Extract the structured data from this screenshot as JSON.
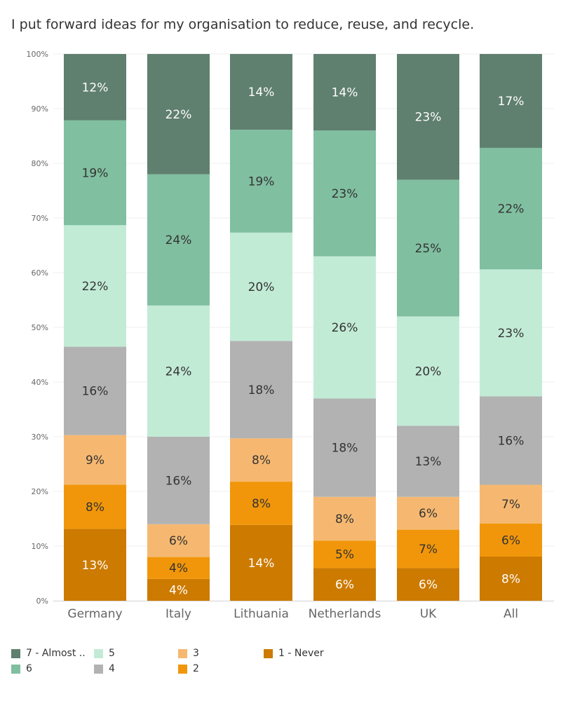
{
  "chart_data": {
    "type": "bar",
    "stacked": true,
    "normalized": true,
    "title": "I put forward ideas for my organisation to reduce, reuse, and recycle.",
    "categories": [
      "Germany",
      "Italy",
      "Lithuania",
      "Netherlands",
      "UK",
      "All"
    ],
    "y_ticks": [
      "0%",
      "10%",
      "20%",
      "30%",
      "40%",
      "50%",
      "60%",
      "70%",
      "80%",
      "90%",
      "100%"
    ],
    "ylim": [
      0,
      100
    ],
    "series": [
      {
        "name": "1 - Never",
        "color": "#cc7a00",
        "text_color": "#ffffff",
        "values": [
          13,
          4,
          14,
          6,
          6,
          8
        ],
        "labels": [
          "13%",
          "4%",
          "14%",
          "6%",
          "6%",
          "8%"
        ]
      },
      {
        "name": "2",
        "color": "#f1960a",
        "text_color": "#333333",
        "values": [
          8,
          4,
          8,
          5,
          7,
          6
        ],
        "labels": [
          "8%",
          "4%",
          "8%",
          "5%",
          "7%",
          "6%"
        ]
      },
      {
        "name": "3",
        "color": "#f6b870",
        "text_color": "#333333",
        "values": [
          9,
          6,
          8,
          8,
          6,
          7
        ],
        "labels": [
          "9%",
          "6%",
          "8%",
          "8%",
          "6%",
          "7%"
        ]
      },
      {
        "name": "4",
        "color": "#b2b2b2",
        "text_color": "#333333",
        "values": [
          16,
          16,
          18,
          18,
          13,
          16
        ],
        "labels": [
          "16%",
          "16%",
          "18%",
          "18%",
          "13%",
          "16%"
        ]
      },
      {
        "name": "5",
        "color": "#c2ebd6",
        "text_color": "#333333",
        "values": [
          22,
          24,
          20,
          26,
          20,
          23
        ],
        "labels": [
          "22%",
          "24%",
          "20%",
          "26%",
          "20%",
          "23%"
        ]
      },
      {
        "name": "6",
        "color": "#80bfa0",
        "text_color": "#333333",
        "values": [
          19,
          24,
          19,
          23,
          25,
          22
        ],
        "labels": [
          "19%",
          "24%",
          "19%",
          "23%",
          "25%",
          "22%"
        ]
      },
      {
        "name": "7 - Almost ..",
        "color": "#5f7f6f",
        "text_color": "#ffffff",
        "values": [
          12,
          22,
          14,
          14,
          23,
          17
        ],
        "labels": [
          "12%",
          "22%",
          "14%",
          "14%",
          "23%",
          "17%"
        ]
      }
    ],
    "legend": [
      {
        "label": "7 - Almost ..",
        "color": "#5f7f6f"
      },
      {
        "label": "6",
        "color": "#80bfa0"
      },
      {
        "label": "5",
        "color": "#c2ebd6"
      },
      {
        "label": "4",
        "color": "#b2b2b2"
      },
      {
        "label": "3",
        "color": "#f6b870"
      },
      {
        "label": "2",
        "color": "#f1960a"
      },
      {
        "label": "1 - Never",
        "color": "#cc7a00"
      }
    ]
  }
}
